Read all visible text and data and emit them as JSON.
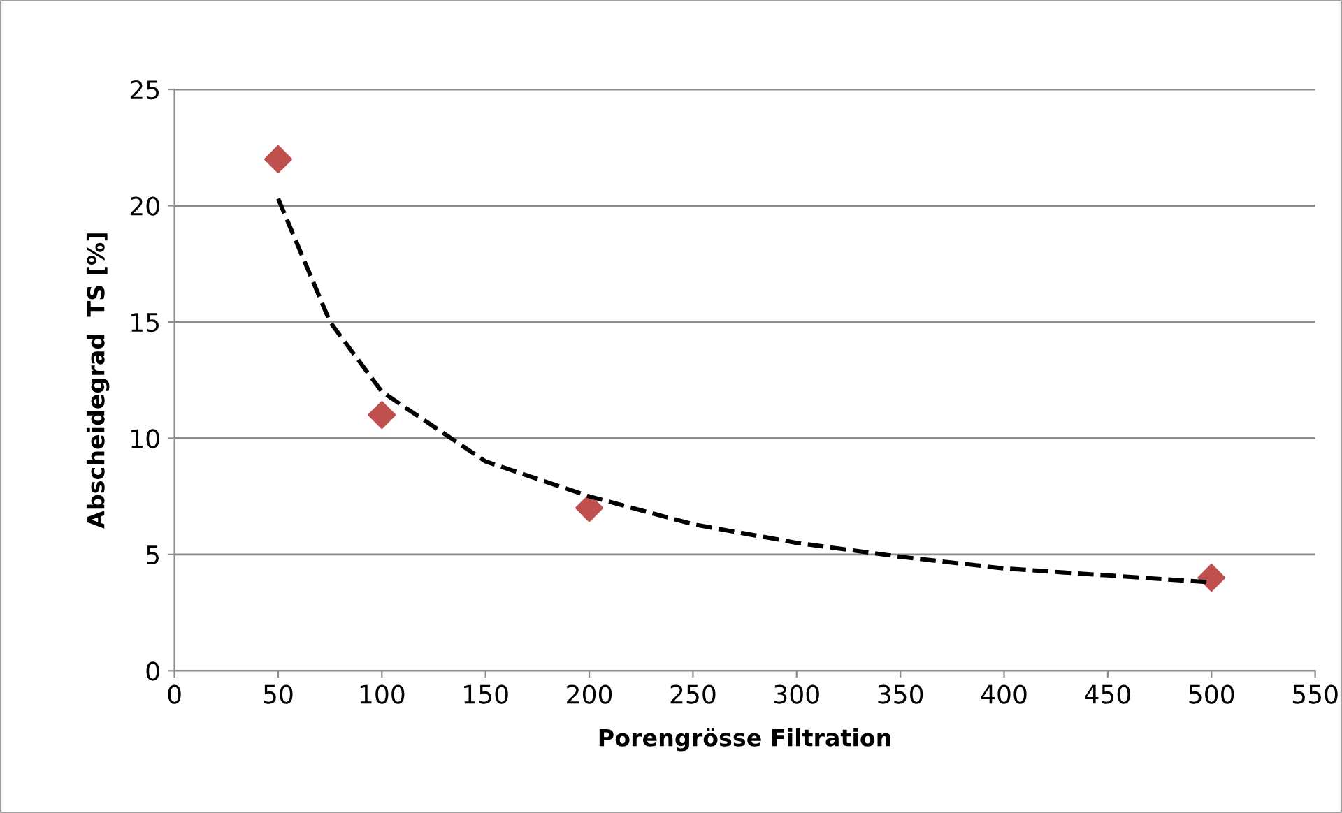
{
  "chart_data": {
    "type": "scatter",
    "xlabel": "Porengrösse Filtration",
    "ylabel": "Abscheidegrad  TS [%]",
    "series": [
      {
        "color": "#c0504d",
        "marker": "diamond",
        "x": [
          50,
          100,
          200,
          500
        ],
        "values": [
          22,
          11,
          7,
          4
        ]
      },
      {
        "type": "line",
        "color": "#000000",
        "line_style": "dashed",
        "marker": "none",
        "x": [
          50,
          75,
          100,
          150,
          200,
          250,
          300,
          350,
          400,
          450,
          500
        ],
        "values": [
          20.3,
          15,
          12,
          9,
          7.5,
          6.3,
          5.5,
          4.9,
          4.4,
          4.1,
          3.8
        ]
      }
    ],
    "xlim": [
      0,
      550
    ],
    "xticks": [
      0,
      50,
      100,
      150,
      200,
      250,
      300,
      350,
      400,
      450,
      500,
      550
    ],
    "ylim": [
      0,
      25
    ],
    "yticks": [
      0,
      5,
      10,
      15,
      20,
      25
    ],
    "grid": "y"
  }
}
